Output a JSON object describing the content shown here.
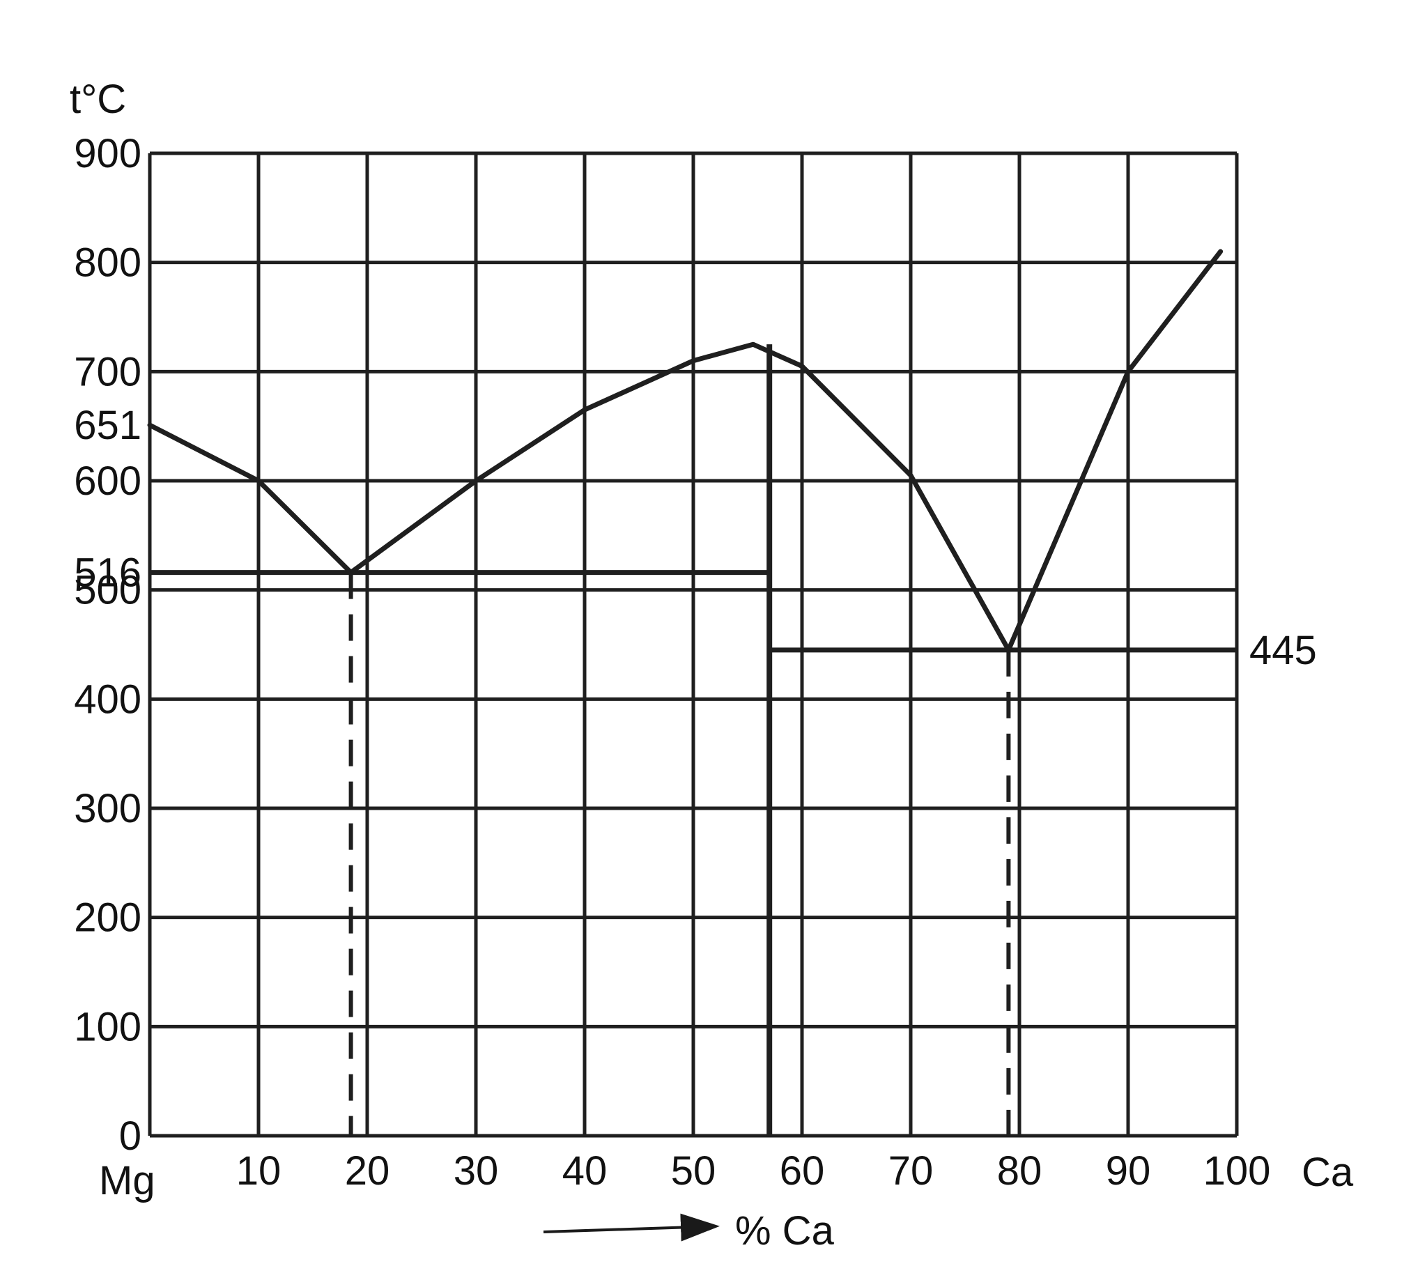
{
  "chart_data": {
    "type": "line",
    "title": "",
    "ylabel": "t°C",
    "xlabel": "% Ca",
    "x_left_label": "Mg",
    "x_right_label": "Ca",
    "xlim": [
      0,
      100
    ],
    "ylim": [
      0,
      900
    ],
    "grid": true,
    "x_ticks": [
      0,
      10,
      20,
      30,
      40,
      50,
      60,
      70,
      80,
      90,
      100
    ],
    "x_tick_labels": [
      "",
      "10",
      "20",
      "30",
      "40",
      "50",
      "60",
      "70",
      "80",
      "90",
      "100"
    ],
    "y_ticks": [
      0,
      100,
      200,
      300,
      400,
      500,
      600,
      700,
      800,
      900
    ],
    "y_tick_labels": [
      "0",
      "100",
      "200",
      "300",
      "400",
      "500",
      "600",
      "700",
      "800",
      "900"
    ],
    "special_y_labels": [
      {
        "value": 651,
        "label": "651",
        "side": "left"
      },
      {
        "value": 516,
        "label": "516",
        "side": "left"
      },
      {
        "value": 445,
        "label": "445",
        "side": "right"
      }
    ],
    "liquidus": [
      {
        "x": 0,
        "y": 651
      },
      {
        "x": 10,
        "y": 600
      },
      {
        "x": 18.5,
        "y": 516
      },
      {
        "x": 30,
        "y": 600
      },
      {
        "x": 40,
        "y": 665
      },
      {
        "x": 50,
        "y": 710
      },
      {
        "x": 55.5,
        "y": 725
      },
      {
        "x": 60,
        "y": 705
      },
      {
        "x": 70,
        "y": 605
      },
      {
        "x": 79,
        "y": 445
      },
      {
        "x": 90,
        "y": 700
      },
      {
        "x": 98.5,
        "y": 810
      }
    ],
    "eutectic_lines": [
      {
        "y": 516,
        "x_start": 0,
        "x_end": 57
      },
      {
        "y": 445,
        "x_start": 57,
        "x_end": 100
      }
    ],
    "compound_line": {
      "x": 57,
      "y_top": 725,
      "y_bottom": 0
    },
    "eutectic_compositions": [
      {
        "x": 18.5,
        "y": 516
      },
      {
        "x": 79,
        "y": 445
      }
    ]
  }
}
